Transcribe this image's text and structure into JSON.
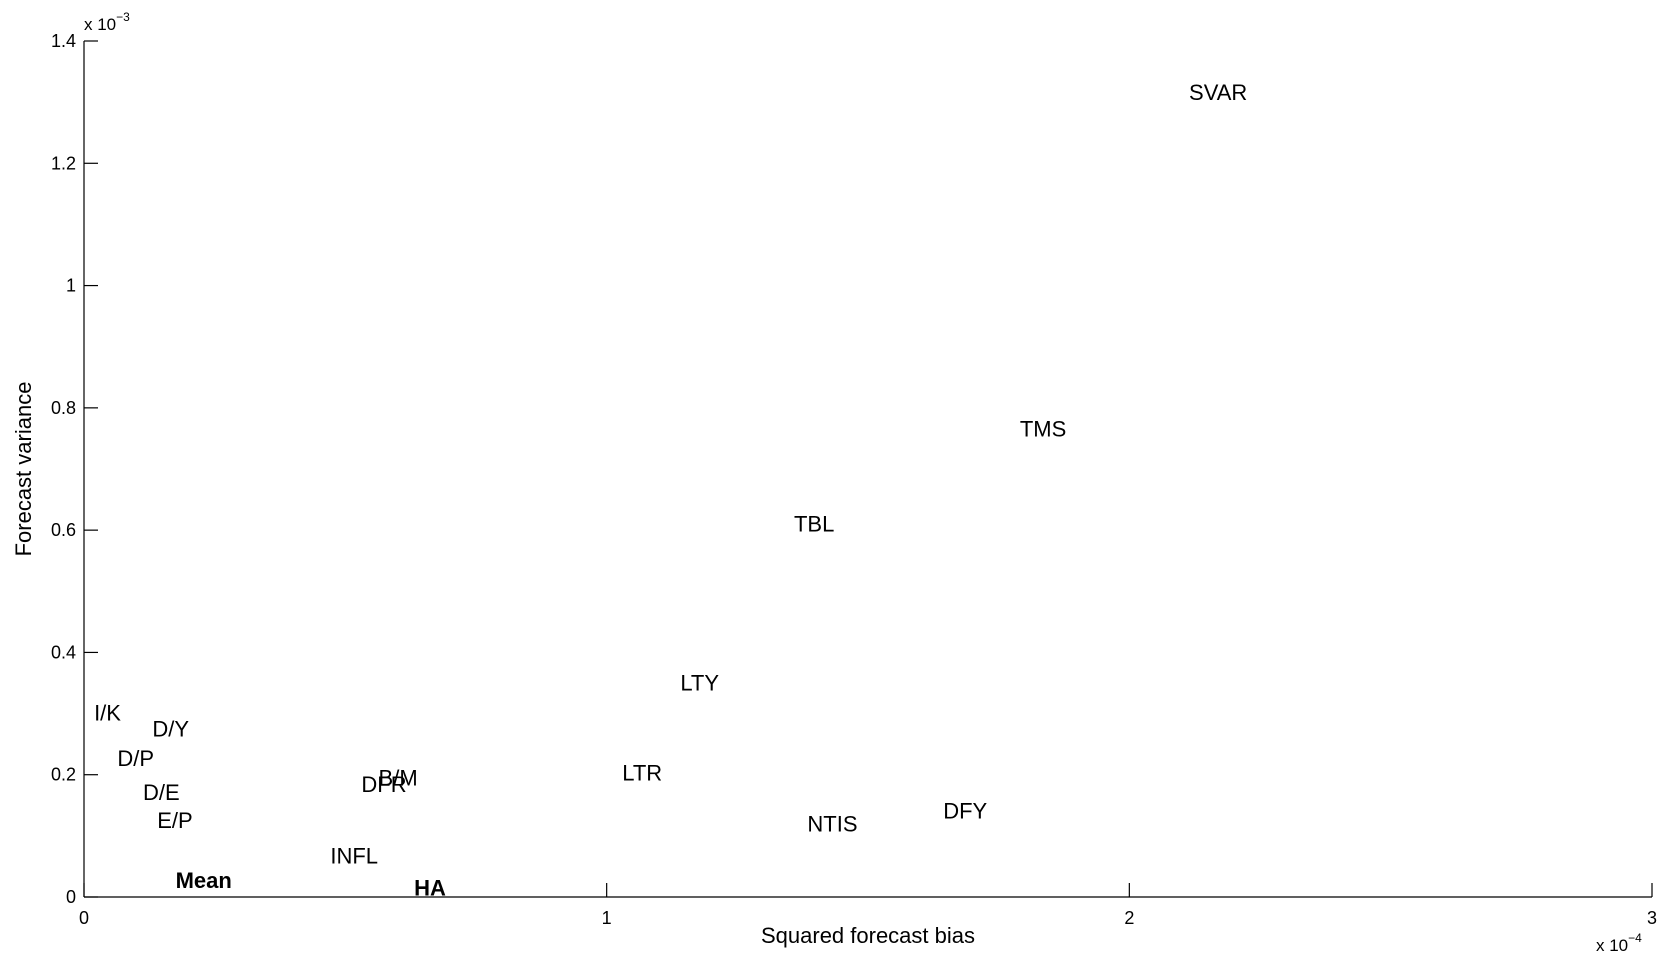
{
  "chart_data": {
    "type": "scatter",
    "xlabel": "Squared forecast bias",
    "ylabel": "Forecast variance",
    "xlim": [
      0,
      0.0003
    ],
    "ylim": [
      0,
      0.0014
    ],
    "x_ticks": [
      0,
      0.0001,
      0.0002,
      0.0003
    ],
    "x_tick_labels": [
      "0",
      "1",
      "2",
      "3"
    ],
    "y_ticks": [
      0,
      0.0002,
      0.0004,
      0.0006,
      0.0008,
      0.001,
      0.0012,
      0.0014
    ],
    "y_tick_labels": [
      "0",
      "0.2",
      "0.4",
      "0.6",
      "0.8",
      "1",
      "1.2",
      "1.4"
    ],
    "x_exponent": {
      "base": "x 10",
      "power": "−4"
    },
    "y_exponent": {
      "base": "x 10",
      "power": "−3"
    },
    "grid": false,
    "marker": "text-label",
    "points": [
      {
        "label": "SVAR",
        "x": 0.000217,
        "y": 0.001313,
        "bold": false
      },
      {
        "label": "TMS",
        "x": 0.0001835,
        "y": 0.000763,
        "bold": false
      },
      {
        "label": "TBL",
        "x": 0.0001397,
        "y": 0.000607,
        "bold": false
      },
      {
        "label": "LTY",
        "x": 0.0001178,
        "y": 0.000347,
        "bold": false
      },
      {
        "label": "I/K",
        "x": 4.5e-06,
        "y": 0.000298,
        "bold": false
      },
      {
        "label": "D/Y",
        "x": 1.66e-05,
        "y": 0.000272,
        "bold": false
      },
      {
        "label": "D/P",
        "x": 9.9e-06,
        "y": 0.000224,
        "bold": false
      },
      {
        "label": "B/M",
        "x": 6.01e-05,
        "y": 0.000192,
        "bold": false
      },
      {
        "label": "DFR",
        "x": 5.74e-05,
        "y": 0.000181,
        "bold": false
      },
      {
        "label": "LTR",
        "x": 0.0001068,
        "y": 0.0002,
        "bold": false
      },
      {
        "label": "D/E",
        "x": 1.48e-05,
        "y": 0.000168,
        "bold": false
      },
      {
        "label": "E/P",
        "x": 1.74e-05,
        "y": 0.000122,
        "bold": false
      },
      {
        "label": "NTIS",
        "x": 0.0001432,
        "y": 0.000117,
        "bold": false
      },
      {
        "label": "DFY",
        "x": 0.0001686,
        "y": 0.000138,
        "bold": false
      },
      {
        "label": "INFL",
        "x": 5.17e-05,
        "y": 6.4e-05,
        "bold": false
      },
      {
        "label": "Mean",
        "x": 2.29e-05,
        "y": 2.4e-05,
        "bold": true
      },
      {
        "label": "HA",
        "x": 6.62e-05,
        "y": 1.2e-05,
        "bold": true
      }
    ]
  }
}
